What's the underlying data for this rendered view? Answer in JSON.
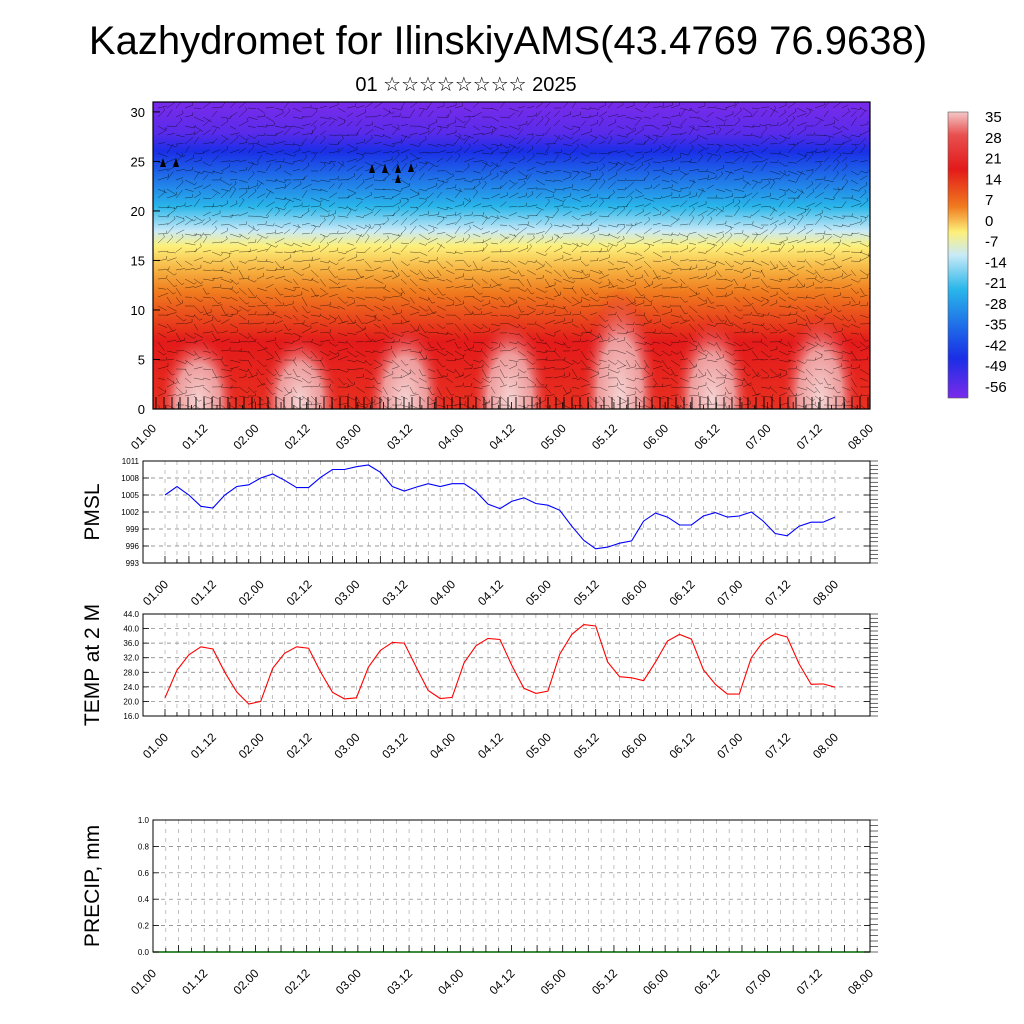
{
  "header": {
    "title": "Kazhydromet for IlinskiyAMS(43.4769 76.9638)",
    "subtitle": "01 ☆☆☆☆☆☆☆☆ 2025"
  },
  "time_ticks": [
    "01.00",
    "01.12",
    "02.00",
    "02.12",
    "03.00",
    "03.12",
    "04.00",
    "04.12",
    "05.00",
    "05.12",
    "06.00",
    "06.12",
    "07.00",
    "07.12",
    "08.00"
  ],
  "chart_data": [
    {
      "id": "cross-section",
      "type": "heatmap",
      "y_ticks": [
        "0",
        "5",
        "10",
        "15",
        "20",
        "25",
        "30"
      ],
      "ylim": [
        0,
        31
      ],
      "colorbar": {
        "labels": [
          "35",
          "28",
          "21",
          "14",
          "7",
          "0",
          "-7",
          "-14",
          "-21",
          "-28",
          "-35",
          "-42",
          "-49",
          "-56"
        ],
        "colors": {
          "hot": "#f4c8c8",
          "red": "#e31a1a",
          "orange": "#f07a1e",
          "yellow": "#fdf07a",
          "pale": "#c9eaf7",
          "cyan": "#29b6ea",
          "blue": "#1a2ee6",
          "purple": "#7a2bea"
        }
      }
    },
    {
      "id": "pmsl",
      "type": "line",
      "ylabel": "PMSL",
      "y_ticks": [
        "1011",
        "1008",
        "1005",
        "1002",
        "999",
        "996",
        "993"
      ],
      "ylim": [
        993,
        1011
      ],
      "color": "#0000ff",
      "values": [
        1005,
        1006.5,
        1005,
        1003,
        1002.7,
        1005,
        1006.5,
        1006.8,
        1008,
        1008.7,
        1007.6,
        1006.3,
        1006.3,
        1008.1,
        1009.5,
        1009.5,
        1010,
        1010.3,
        1009,
        1006.5,
        1005.7,
        1006.4,
        1007,
        1006.5,
        1007,
        1007,
        1005.6,
        1003.4,
        1002.6,
        1003.9,
        1004.5,
        1003.5,
        1003.2,
        1002.3,
        999.5,
        997,
        995.5,
        995.8,
        996.5,
        996.9,
        1000.4,
        1001.8,
        1001.1,
        999.7,
        999.7,
        1001.3,
        1001.9,
        1001.1,
        1001.3,
        1002,
        1000.4,
        998.2,
        997.8,
        999.5,
        1000.2,
        1000.2,
        1001.1
      ]
    },
    {
      "id": "temp2m",
      "type": "line",
      "ylabel": "TEMP at 2 M",
      "y_ticks": [
        "44.0",
        "40.0",
        "36.0",
        "32.0",
        "28.0",
        "24.0",
        "20.0",
        "16.0"
      ],
      "ylim": [
        16,
        44
      ],
      "color": "#ff0000",
      "values": [
        21,
        28.6,
        32.8,
        35,
        34.4,
        28,
        22.6,
        19.3,
        20,
        29.1,
        33.2,
        35,
        34.6,
        28.1,
        22.5,
        20.7,
        21,
        29.4,
        34,
        36.2,
        36,
        29.4,
        23,
        20.8,
        21.1,
        30.6,
        35.3,
        37.3,
        37,
        29.8,
        23.6,
        22.2,
        22.8,
        33,
        38.4,
        41.1,
        40.7,
        30.8,
        26.8,
        26.5,
        25.7,
        30.8,
        36.6,
        38.4,
        37.1,
        28.7,
        24.7,
        22,
        22,
        32,
        36.4,
        38.6,
        37.7,
        30.3,
        24.7,
        24.8,
        23.9
      ]
    },
    {
      "id": "precip",
      "type": "bar",
      "ylabel": "PRECIP, mm",
      "y_ticks": [
        "1.0",
        "0.8",
        "0.6",
        "0.4",
        "0.2",
        "0.0"
      ],
      "ylim": [
        0,
        1
      ],
      "values": []
    }
  ]
}
